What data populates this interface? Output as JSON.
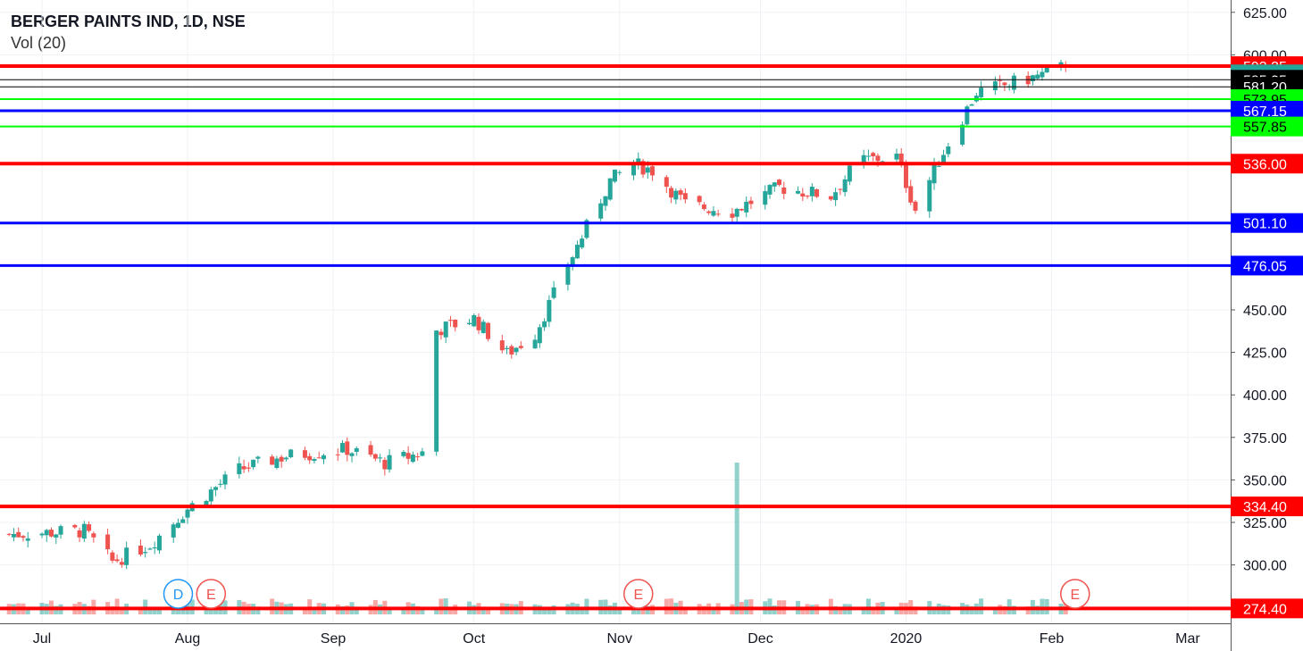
{
  "legend": {
    "symbol": "BERGER PAINTS IND, 1D, NSE",
    "volume": "Vol (20)"
  },
  "colors": {
    "up": "#26a69a",
    "down": "#ef5350",
    "red_line": "#ff0000",
    "blue_line": "#0000ff",
    "green_line": "#00ff00",
    "grid": "#eef1f5"
  },
  "chart_data": {
    "type": "candlestick",
    "yaxis": {
      "ticks": [
        "625.00",
        "600.00",
        "450.00",
        "425.00",
        "400.00",
        "375.00",
        "350.00",
        "325.00",
        "300.00"
      ],
      "tick_values": [
        625,
        600,
        450,
        425,
        400,
        375,
        350,
        325,
        300
      ],
      "range": [
        267,
        630
      ]
    },
    "xaxis": {
      "labels": [
        "Jul",
        "Aug",
        "Sep",
        "Oct",
        "Nov",
        "Dec",
        "2020",
        "Feb",
        "Mar"
      ],
      "dates": [
        "2019-07-01",
        "2019-08-01",
        "2019-09-01",
        "2019-10-01",
        "2019-11-01",
        "2019-12-01",
        "2020-01-01",
        "2020-02-01",
        "2020-03-01"
      ]
    },
    "horizontal_lines": [
      {
        "label": "593.35",
        "value": 593.35,
        "line_color": "red",
        "label_bg": "#ff0000",
        "label_fg": "#ffffff",
        "width": 4
      },
      {
        "label": "588.50",
        "value": 588.5,
        "line_color": "none",
        "label_bg": "#26a69a",
        "label_fg": "#ffffff",
        "width": 0
      },
      {
        "label": "585.35",
        "value": 585.35,
        "line_color": "black",
        "label_bg": "#000000",
        "label_fg": "#ffffff",
        "width": 1
      },
      {
        "label": "581.20",
        "value": 581.2,
        "line_color": "black",
        "label_bg": "#000000",
        "label_fg": "#ffffff",
        "width": 1
      },
      {
        "label": "573.95",
        "value": 573.95,
        "line_color": "green",
        "label_bg": "#00ff00",
        "label_fg": "#000000",
        "width": 2
      },
      {
        "label": "567.15",
        "value": 567.15,
        "line_color": "blue",
        "label_bg": "#0000ff",
        "label_fg": "#ffffff",
        "width": 3
      },
      {
        "label": "557.85",
        "value": 557.85,
        "line_color": "green",
        "label_bg": "#00ff00",
        "label_fg": "#000000",
        "width": 2
      },
      {
        "label": "536.00",
        "value": 536.0,
        "line_color": "red",
        "label_bg": "#ff0000",
        "label_fg": "#ffffff",
        "width": 4
      },
      {
        "label": "501.10",
        "value": 501.1,
        "line_color": "blue",
        "label_bg": "#0000ff",
        "label_fg": "#ffffff",
        "width": 3
      },
      {
        "label": "476.05",
        "value": 476.05,
        "line_color": "blue",
        "label_bg": "#0000ff",
        "label_fg": "#ffffff",
        "width": 3
      },
      {
        "label": "334.40",
        "value": 334.4,
        "line_color": "red",
        "label_bg": "#ff0000",
        "label_fg": "#ffffff",
        "width": 4
      },
      {
        "label": "274.40",
        "value": 274.4,
        "line_color": "red",
        "label_bg": "#ff0000",
        "label_fg": "#ffffff",
        "width": 4
      }
    ],
    "events": [
      {
        "letter": "D",
        "date": "2019-07-30",
        "color": "#2196f3"
      },
      {
        "letter": "E",
        "date": "2019-08-06",
        "color": "#ef5350"
      },
      {
        "letter": "E",
        "date": "2019-11-05",
        "color": "#ef5350"
      },
      {
        "letter": "E",
        "date": "2020-02-06",
        "color": "#ef5350"
      }
    ],
    "series": [
      {
        "name": "price",
        "anchors": [
          [
            "2019-06-24",
            318
          ],
          [
            "2019-07-10",
            320
          ],
          [
            "2019-07-16",
            302
          ],
          [
            "2019-07-24",
            312
          ],
          [
            "2019-08-01",
            333
          ],
          [
            "2019-08-12",
            356
          ],
          [
            "2019-08-22",
            364
          ],
          [
            "2019-09-04",
            368
          ],
          [
            "2019-09-12",
            360
          ],
          [
            "2019-09-20",
            366
          ],
          [
            "2019-09-23",
            438
          ],
          [
            "2019-10-01",
            445
          ],
          [
            "2019-10-08",
            424
          ],
          [
            "2019-10-14",
            436
          ],
          [
            "2019-10-22",
            482
          ],
          [
            "2019-10-30",
            526
          ],
          [
            "2019-11-04",
            536
          ],
          [
            "2019-11-08",
            532
          ],
          [
            "2019-11-15",
            512
          ],
          [
            "2019-11-25",
            508
          ],
          [
            "2019-12-05",
            522
          ],
          [
            "2019-12-16",
            517
          ],
          [
            "2019-12-22",
            538
          ],
          [
            "2019-12-30",
            540
          ],
          [
            "2020-01-03",
            509
          ],
          [
            "2020-01-08",
            538
          ],
          [
            "2020-01-16",
            578
          ],
          [
            "2020-01-22",
            582
          ],
          [
            "2020-01-31",
            589
          ],
          [
            "2020-02-04",
            593.35
          ]
        ]
      },
      {
        "name": "volume_spike",
        "date": "2019-11-26"
      }
    ],
    "last_date": "2020-02-04",
    "grid": true
  }
}
